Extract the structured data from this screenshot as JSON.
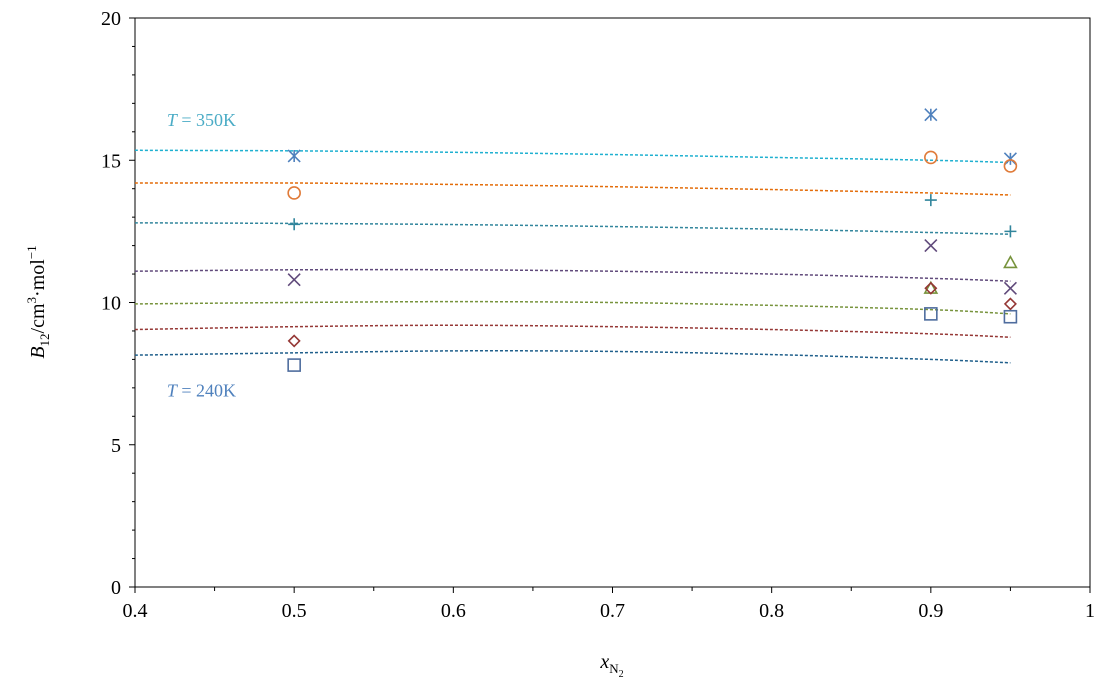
{
  "chart_data": {
    "type": "scatter",
    "title": "",
    "xlabel": "x",
    "xlabel_sub": "N",
    "xlabel_subsub": "2",
    "ylabel": "B",
    "ylabel_sub": "12",
    "ylabel_unit_a": "/cm",
    "ylabel_sup_a": "3",
    "ylabel_unit_b": "·mol",
    "ylabel_sup_b": "−1",
    "xlim": [
      0.4,
      1
    ],
    "ylim": [
      0,
      20
    ],
    "xticks": [
      "0.4",
      "0.5",
      "0.6",
      "0.7",
      "0.8",
      "0.9",
      "1"
    ],
    "yticks": [
      "0",
      "5",
      "10",
      "15",
      "20"
    ],
    "grid": false,
    "annotations": [
      {
        "italic": "T",
        "rest": " = 350K",
        "x": 0.42,
        "y": 16.2,
        "color": "#4bacc6"
      },
      {
        "italic": "T",
        "rest": " = 240K",
        "x": 0.42,
        "y": 6.7,
        "color": "#4f81bd"
      }
    ],
    "series": [
      {
        "marker": "star",
        "color": "#4f81bd",
        "points": [
          [
            0.5,
            15.15
          ],
          [
            0.9,
            16.6
          ],
          [
            0.95,
            15.05
          ]
        ],
        "curve_color": "#1fb0d0",
        "curve": [
          [
            0.4,
            15.35
          ],
          [
            0.5,
            15.33
          ],
          [
            0.6,
            15.28
          ],
          [
            0.7,
            15.2
          ],
          [
            0.8,
            15.1
          ],
          [
            0.9,
            15.0
          ],
          [
            0.95,
            14.92
          ]
        ]
      },
      {
        "marker": "circle",
        "color": "#e07b39",
        "points": [
          [
            0.5,
            13.85
          ],
          [
            0.9,
            15.1
          ],
          [
            0.95,
            14.8
          ]
        ],
        "curve_color": "#e36c09",
        "curve": [
          [
            0.4,
            14.2
          ],
          [
            0.5,
            14.2
          ],
          [
            0.6,
            14.15
          ],
          [
            0.7,
            14.07
          ],
          [
            0.8,
            13.97
          ],
          [
            0.9,
            13.85
          ],
          [
            0.95,
            13.78
          ]
        ]
      },
      {
        "marker": "plus",
        "color": "#31859c",
        "points": [
          [
            0.5,
            12.75
          ],
          [
            0.9,
            13.6
          ],
          [
            0.95,
            12.5
          ]
        ],
        "curve_color": "#31859c",
        "curve": [
          [
            0.4,
            12.8
          ],
          [
            0.5,
            12.78
          ],
          [
            0.6,
            12.74
          ],
          [
            0.7,
            12.67
          ],
          [
            0.8,
            12.58
          ],
          [
            0.9,
            12.46
          ],
          [
            0.95,
            12.4
          ]
        ]
      },
      {
        "marker": "x",
        "color": "#604a7b",
        "points": [
          [
            0.5,
            10.8
          ],
          [
            0.9,
            12.0
          ],
          [
            0.95,
            10.5
          ]
        ],
        "curve_color": "#604a7b",
        "curve": [
          [
            0.4,
            11.1
          ],
          [
            0.5,
            11.15
          ],
          [
            0.6,
            11.15
          ],
          [
            0.7,
            11.1
          ],
          [
            0.8,
            11.0
          ],
          [
            0.9,
            10.85
          ],
          [
            0.95,
            10.75
          ]
        ]
      },
      {
        "marker": "triangle",
        "color": "#77933c",
        "points": [
          [
            0.9,
            10.5
          ],
          [
            0.95,
            11.4
          ]
        ],
        "curve_color": "#77933c",
        "curve": [
          [
            0.4,
            9.95
          ],
          [
            0.5,
            10.0
          ],
          [
            0.6,
            10.03
          ],
          [
            0.7,
            10.0
          ],
          [
            0.8,
            9.9
          ],
          [
            0.9,
            9.75
          ],
          [
            0.95,
            9.6
          ]
        ]
      },
      {
        "marker": "diamond",
        "color": "#953735",
        "points": [
          [
            0.5,
            8.65
          ],
          [
            0.9,
            10.5
          ],
          [
            0.95,
            9.95
          ]
        ],
        "curve_color": "#953735",
        "curve": [
          [
            0.4,
            9.05
          ],
          [
            0.5,
            9.15
          ],
          [
            0.6,
            9.2
          ],
          [
            0.7,
            9.15
          ],
          [
            0.8,
            9.05
          ],
          [
            0.9,
            8.9
          ],
          [
            0.95,
            8.78
          ]
        ]
      },
      {
        "marker": "square",
        "color": "#4f6d9e",
        "points": [
          [
            0.5,
            7.8
          ],
          [
            0.9,
            9.6
          ],
          [
            0.95,
            9.5
          ]
        ],
        "curve_color": "#1f5f8b",
        "curve": [
          [
            0.4,
            8.15
          ],
          [
            0.5,
            8.23
          ],
          [
            0.6,
            8.3
          ],
          [
            0.7,
            8.28
          ],
          [
            0.8,
            8.17
          ],
          [
            0.9,
            8.0
          ],
          [
            0.95,
            7.88
          ]
        ]
      }
    ]
  }
}
